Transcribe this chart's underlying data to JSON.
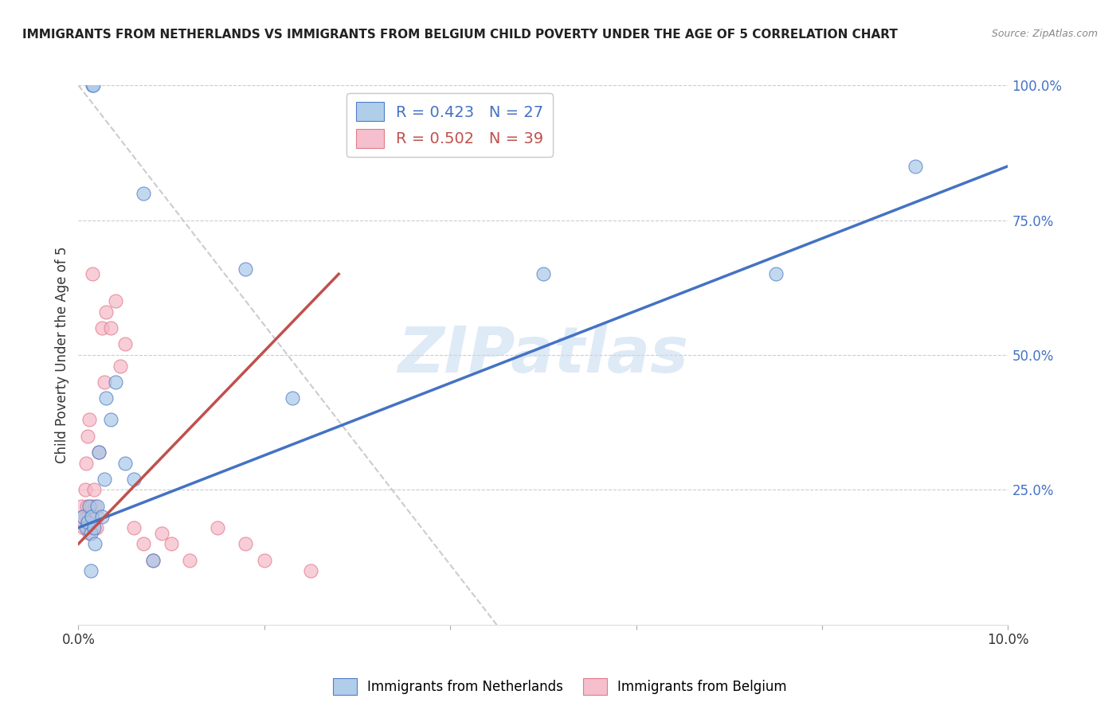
{
  "title": "IMMIGRANTS FROM NETHERLANDS VS IMMIGRANTS FROM BELGIUM CHILD POVERTY UNDER THE AGE OF 5 CORRELATION CHART",
  "source": "Source: ZipAtlas.com",
  "ylabel": "Child Poverty Under the Age of 5",
  "xlim": [
    0.0,
    10.0
  ],
  "ylim": [
    0.0,
    100.0
  ],
  "legend_label_blue": "Immigrants from Netherlands",
  "legend_label_pink": "Immigrants from Belgium",
  "blue_color": "#A8C8E8",
  "pink_color": "#F4B8C8",
  "blue_line_color": "#4472C4",
  "pink_line_color": "#C0504D",
  "blue_edge_color": "#4472C4",
  "pink_edge_color": "#E07080",
  "watermark_color": "#C8DCF0",
  "background_color": "#FFFFFF",
  "grid_color": "#CCCCCC",
  "right_axis_color": "#4472C4",
  "title_color": "#222222",
  "source_color": "#888888",
  "nl_x": [
    0.05,
    0.08,
    0.1,
    0.12,
    0.13,
    0.14,
    0.15,
    0.16,
    0.17,
    0.18,
    0.2,
    0.22,
    0.25,
    0.28,
    0.3,
    0.35,
    0.4,
    0.5,
    0.6,
    0.7,
    0.8,
    1.8,
    2.3,
    5.0,
    7.5,
    9.0,
    0.13
  ],
  "nl_y": [
    20,
    18,
    19,
    22,
    17,
    20,
    100,
    100,
    18,
    15,
    22,
    32,
    20,
    27,
    42,
    38,
    45,
    30,
    27,
    80,
    12,
    66,
    42,
    65,
    65,
    85,
    10
  ],
  "be_x": [
    0.03,
    0.05,
    0.06,
    0.07,
    0.08,
    0.09,
    0.1,
    0.11,
    0.12,
    0.13,
    0.14,
    0.15,
    0.16,
    0.17,
    0.18,
    0.19,
    0.2,
    0.22,
    0.25,
    0.28,
    0.3,
    0.35,
    0.4,
    0.45,
    0.5,
    0.6,
    0.7,
    0.8,
    0.9,
    1.0,
    1.2,
    1.5,
    1.8,
    2.0,
    2.5,
    0.1,
    0.12,
    0.08,
    0.15
  ],
  "be_y": [
    22,
    20,
    18,
    25,
    20,
    22,
    18,
    20,
    17,
    20,
    22,
    20,
    18,
    25,
    22,
    18,
    20,
    32,
    55,
    45,
    58,
    55,
    60,
    48,
    52,
    18,
    15,
    12,
    17,
    15,
    12,
    18,
    15,
    12,
    10,
    35,
    38,
    30,
    65
  ],
  "nl_line_x": [
    0.0,
    10.0
  ],
  "nl_line_y": [
    18.0,
    85.0
  ],
  "be_line_x": [
    0.0,
    2.8
  ],
  "be_line_y": [
    15.0,
    65.0
  ],
  "ref_line_x": [
    0.0,
    4.5
  ],
  "ref_line_y": [
    100.0,
    0.0
  ]
}
